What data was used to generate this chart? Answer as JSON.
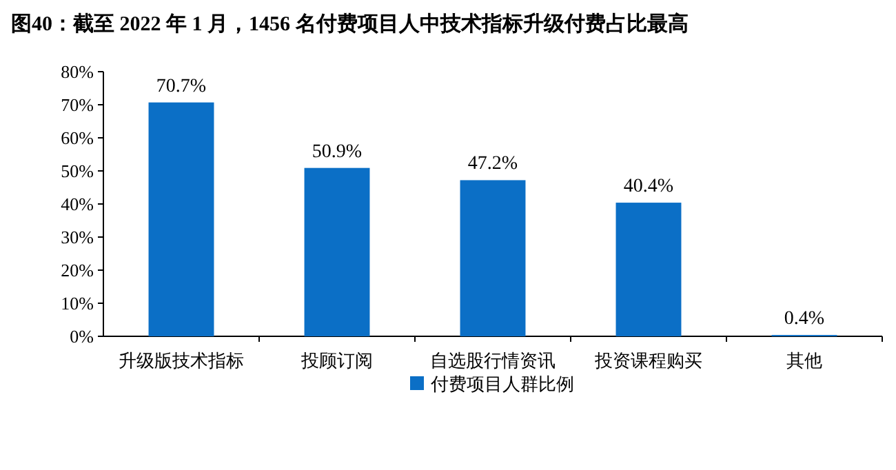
{
  "chart_data": {
    "type": "bar",
    "title": "图40：截至 2022 年 1 月，1456 名付费项目人中技术指标升级付费占比最高",
    "categories": [
      "升级版技术指标",
      "投顾订阅",
      "自选股行情资讯",
      "投资课程购买",
      "其他"
    ],
    "series": [
      {
        "name": "付费项目人群比例",
        "color": "#0b6fc6",
        "values": [
          70.7,
          50.9,
          47.2,
          40.4,
          0.4
        ],
        "value_labels": [
          "70.7%",
          "50.9%",
          "47.2%",
          "40.4%",
          "0.4%"
        ]
      }
    ],
    "ylim": [
      0,
      80
    ],
    "yticks": [
      {
        "value": 0,
        "label": "0%"
      },
      {
        "value": 10,
        "label": "10%"
      },
      {
        "value": 20,
        "label": "20%"
      },
      {
        "value": 30,
        "label": "30%"
      },
      {
        "value": 40,
        "label": "40%"
      },
      {
        "value": 50,
        "label": "50%"
      },
      {
        "value": 60,
        "label": "60%"
      },
      {
        "value": 70,
        "label": "70%"
      },
      {
        "value": 80,
        "label": "80%"
      }
    ],
    "legend": "bottom"
  }
}
